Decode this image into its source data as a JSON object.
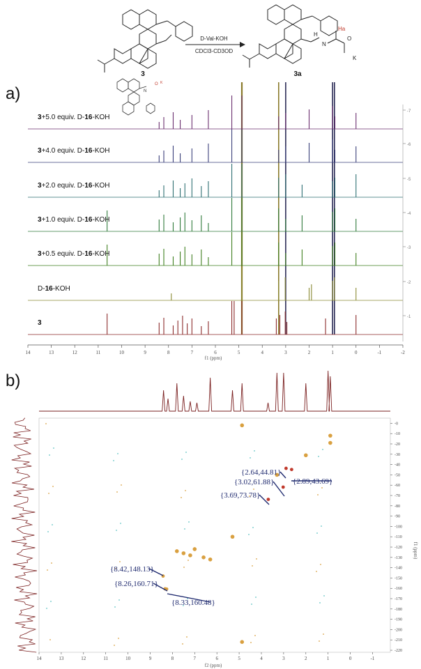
{
  "scheme": {
    "reactant_label": "3",
    "product_label": "3a",
    "reagent_top": "D-Val-KOH",
    "reagent_bottom": "CDCl3-CD3OD",
    "atom_labels": {
      "H": "H",
      "N": "N",
      "Ha": "Ha",
      "K": "K",
      "O": "O"
    }
  },
  "panel_a": {
    "label": "a)",
    "xaxis_label": "f1 (ppm)",
    "x_ticks": [
      "14",
      "13",
      "12",
      "11",
      "10",
      "9",
      "8",
      "7",
      "6",
      "5",
      "4",
      "3",
      "2",
      "1",
      "0",
      "-1",
      "-2"
    ],
    "right_ticks": [
      "1",
      "2",
      "3",
      "4",
      "5",
      "6",
      "7"
    ],
    "traces": [
      {
        "prefix": "",
        "bold": "3",
        "suffix": "",
        "color": "#8b2a2a"
      },
      {
        "prefix": "D-",
        "bold": "16",
        "suffix": "-KOH",
        "color": "#8a8a33"
      },
      {
        "prefix": "",
        "bold": "3",
        "suffix": "+0.5 equiv. D-",
        "bold2": "16",
        "suffix2": "-KOH",
        "color": "#3f7f1f"
      },
      {
        "prefix": "",
        "bold": "3",
        "suffix": "+1.0 equiv. D-",
        "bold2": "16",
        "suffix2": "-KOH",
        "color": "#2f7a3a"
      },
      {
        "prefix": "",
        "bold": "3",
        "suffix": "+2.0 equiv. D-",
        "bold2": "16",
        "suffix2": "-KOH",
        "color": "#2e6f72"
      },
      {
        "prefix": "",
        "bold": "3",
        "suffix": "+4.0 equiv. D-",
        "bold2": "16",
        "suffix2": "-KOH",
        "color": "#3a3f7a"
      },
      {
        "prefix": "",
        "bold": "3",
        "suffix": "+5.0 equiv. D-",
        "bold2": "16",
        "suffix2": "-KOH",
        "color": "#6a2f6f"
      }
    ]
  },
  "panel_b": {
    "label": "b)",
    "xaxis_label": "f2 (ppm)",
    "yaxis_label": "f1 (ppm)",
    "x_ticks": [
      "14",
      "13",
      "12",
      "11",
      "10",
      "9",
      "8",
      "7",
      "6",
      "5",
      "4",
      "3",
      "2",
      "1",
      "0",
      "-1"
    ],
    "y_ticks": [
      "0",
      "10",
      "20",
      "30",
      "40",
      "50",
      "60",
      "70",
      "80",
      "90",
      "100",
      "110",
      "120",
      "130",
      "140",
      "150",
      "160",
      "170",
      "180",
      "190",
      "200",
      "210",
      "220"
    ],
    "annotations": [
      {
        "text": "{2.64,44.81}"
      },
      {
        "text": "{2.89,43.69}"
      },
      {
        "text": "{3.02,61.88}"
      },
      {
        "text": "{3.69,73.78}"
      },
      {
        "text": "{8.42,148.13}"
      },
      {
        "text": "{8.26,160.71}"
      },
      {
        "text": "{8.33,160.48}"
      }
    ],
    "colors": {
      "spectrum": "#7a1f1f",
      "annotation": "#1f2a6f",
      "noise_teal": "#5ec3c3",
      "noise_orange": "#d9a040",
      "peak_red": "#c0392b"
    }
  },
  "chart_data": [
    {
      "type": "line",
      "title": "",
      "xlabel": "f1 (ppm)",
      "ylabel": "",
      "xlim": [
        14,
        -2
      ],
      "x_reversed": true,
      "series": [
        {
          "name": "3",
          "peaks_ppm": [
            10.62,
            8.4,
            8.2,
            7.8,
            7.6,
            7.4,
            7.2,
            7.0,
            6.6,
            6.3,
            5.3,
            5.2,
            4.87,
            3.4,
            3.25,
            3.02,
            2.95,
            1.3,
            0.0
          ]
        },
        {
          "name": "D-16-KOH",
          "peaks_ppm": [
            7.88,
            4.87,
            3.3,
            3.02,
            2.0,
            1.9,
            1.0,
            0.92,
            0.0
          ]
        },
        {
          "name": "3+0.5 equiv. D-16-KOH",
          "peaks_ppm": [
            10.62,
            8.4,
            8.2,
            7.8,
            7.5,
            7.3,
            7.0,
            6.6,
            6.3,
            5.3,
            4.87,
            3.3,
            3.0,
            2.3,
            1.0,
            0.9,
            0.0
          ]
        },
        {
          "name": "3+1.0 equiv. D-16-KOH",
          "peaks_ppm": [
            10.62,
            8.4,
            8.2,
            7.8,
            7.5,
            7.3,
            7.0,
            6.6,
            6.3,
            5.3,
            4.87,
            3.3,
            3.0,
            2.3,
            1.0,
            0.9,
            0.0
          ]
        },
        {
          "name": "3+2.0 equiv. D-16-KOH",
          "peaks_ppm": [
            8.4,
            8.2,
            7.8,
            7.5,
            7.3,
            7.0,
            6.6,
            6.3,
            5.3,
            4.87,
            3.3,
            3.0,
            2.3,
            1.0,
            0.9,
            0.0
          ]
        },
        {
          "name": "3+4.0 equiv. D-16-KOH",
          "peaks_ppm": [
            8.4,
            8.2,
            7.8,
            7.5,
            7.0,
            6.3,
            5.3,
            4.87,
            3.3,
            3.0,
            2.0,
            1.0,
            0.9,
            0.0
          ]
        },
        {
          "name": "3+5.0 equiv. D-16-KOH",
          "peaks_ppm": [
            8.4,
            8.2,
            7.8,
            7.5,
            7.0,
            6.3,
            5.3,
            4.87,
            3.3,
            3.0,
            2.0,
            1.0,
            0.9,
            0.0
          ]
        }
      ]
    },
    {
      "type": "scatter",
      "title": "",
      "xlabel": "f2 (ppm)",
      "ylabel": "f1 (ppm)",
      "xlim": [
        14,
        -1.8
      ],
      "ylim": [
        -5,
        222
      ],
      "series": [
        {
          "name": "",
          "points": [
            [
              2.64,
              44.81
            ],
            [
              2.89,
              43.69
            ],
            [
              3.02,
              61.88
            ],
            [
              3.69,
              73.78
            ],
            [
              8.42,
              148.13
            ],
            [
              8.26,
              160.71
            ],
            [
              8.33,
              160.48
            ],
            [
              2.0,
              31
            ],
            [
              3.3,
              50
            ],
            [
              0.9,
              12
            ],
            [
              0.9,
              19
            ],
            [
              4.87,
              2
            ],
            [
              4.87,
              212
            ],
            [
              7.8,
              124
            ],
            [
              7.5,
              126
            ],
            [
              7.2,
              128
            ],
            [
              7.0,
              122
            ],
            [
              6.6,
              130
            ],
            [
              6.3,
              132
            ],
            [
              5.3,
              110
            ]
          ]
        }
      ]
    }
  ]
}
